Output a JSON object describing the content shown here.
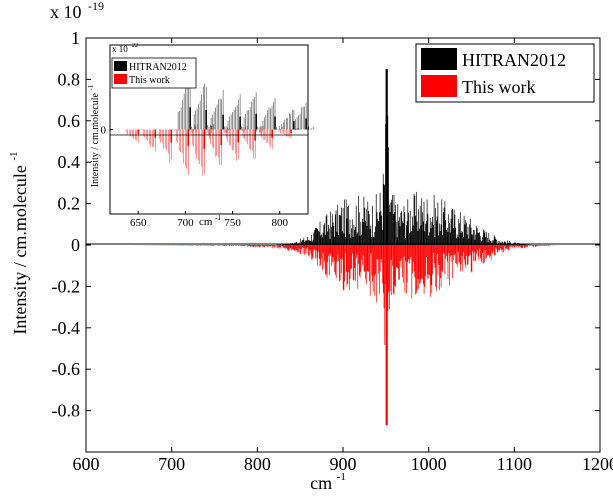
{
  "chart_data": [
    {
      "id": "main",
      "type": "line",
      "xlim": [
        600,
        1200
      ],
      "ylim": [
        -1,
        1
      ],
      "x_ticks": [
        600,
        700,
        800,
        900,
        1000,
        1100,
        1200
      ],
      "y_ticks": [
        -0.8,
        -0.6,
        -0.4,
        -0.2,
        0,
        0.2,
        0.4,
        0.6,
        0.8,
        1
      ],
      "y_tick_labels": [
        "-0.8",
        "-0.6",
        "-0.4",
        "-0.2",
        "0",
        "0.2",
        "0.4",
        "0.6",
        "0.8",
        "1"
      ],
      "x_tick_labels": [
        "600",
        "700",
        "800",
        "900",
        "1000",
        "1100",
        "1200"
      ],
      "y_multiplier": {
        "base": "x 10",
        "exponent": "-19"
      },
      "xlabel": {
        "text": "cm",
        "superscript": "-1"
      },
      "ylabel": {
        "text": "Intensity / cm.molecule",
        "superscript": "-1"
      },
      "legend": {
        "position": "top-right",
        "entries": [
          {
            "label": "HITRAN2012",
            "color": "#000000"
          },
          {
            "label": "This work",
            "color": "#ff0000"
          }
        ]
      },
      "series": [
        {
          "name": "HITRAN2012",
          "color": "#000000",
          "direction": "positive",
          "envelope": [
            {
              "x": 820,
              "y": 0.0
            },
            {
              "x": 840,
              "y": 0.01
            },
            {
              "x": 860,
              "y": 0.05
            },
            {
              "x": 880,
              "y": 0.15
            },
            {
              "x": 900,
              "y": 0.22
            },
            {
              "x": 920,
              "y": 0.25
            },
            {
              "x": 935,
              "y": 0.22
            },
            {
              "x": 945,
              "y": 0.3
            },
            {
              "x": 948,
              "y": 0.45
            },
            {
              "x": 951,
              "y": 0.85
            },
            {
              "x": 955,
              "y": 0.3
            },
            {
              "x": 965,
              "y": 0.2
            },
            {
              "x": 985,
              "y": 0.26
            },
            {
              "x": 1005,
              "y": 0.25
            },
            {
              "x": 1025,
              "y": 0.2
            },
            {
              "x": 1045,
              "y": 0.15
            },
            {
              "x": 1065,
              "y": 0.08
            },
            {
              "x": 1085,
              "y": 0.03
            },
            {
              "x": 1105,
              "y": 0.01
            },
            {
              "x": 1120,
              "y": 0.0
            }
          ]
        },
        {
          "name": "This work",
          "color": "#ff0000",
          "direction": "negative",
          "envelope": [
            {
              "x": 650,
              "y": 0.0
            },
            {
              "x": 780,
              "y": -0.005
            },
            {
              "x": 830,
              "y": -0.02
            },
            {
              "x": 860,
              "y": -0.06
            },
            {
              "x": 880,
              "y": -0.16
            },
            {
              "x": 900,
              "y": -0.22
            },
            {
              "x": 920,
              "y": -0.26
            },
            {
              "x": 935,
              "y": -0.25
            },
            {
              "x": 943,
              "y": -0.32
            },
            {
              "x": 948,
              "y": -0.4
            },
            {
              "x": 951,
              "y": -0.87
            },
            {
              "x": 955,
              "y": -0.35
            },
            {
              "x": 965,
              "y": -0.22
            },
            {
              "x": 985,
              "y": -0.27
            },
            {
              "x": 1005,
              "y": -0.25
            },
            {
              "x": 1025,
              "y": -0.2
            },
            {
              "x": 1045,
              "y": -0.16
            },
            {
              "x": 1065,
              "y": -0.09
            },
            {
              "x": 1090,
              "y": -0.03
            },
            {
              "x": 1120,
              "y": -0.01
            },
            {
              "x": 1150,
              "y": 0.0
            }
          ]
        }
      ]
    },
    {
      "id": "inset",
      "type": "line",
      "xlim": [
        620,
        830
      ],
      "ylim": [
        -1.6,
        1.6
      ],
      "x_ticks": [
        650,
        700,
        750,
        800
      ],
      "x_tick_labels": [
        "650",
        "700",
        "750",
        "800"
      ],
      "y_ticks": [
        0
      ],
      "y_tick_labels": [
        "0"
      ],
      "y_multiplier": {
        "base": "x 10",
        "exponent": "-22"
      },
      "xlabel": {
        "text": "cm",
        "superscript": "-1"
      },
      "ylabel": {
        "text": "Intensity / cm.molecule",
        "superscript": "-1"
      },
      "legend": {
        "position": "top-left",
        "entries": [
          {
            "label": "HITRAN2012",
            "color": "#000000"
          },
          {
            "label": "This work",
            "color": "#ff0000"
          }
        ]
      },
      "series": [
        {
          "name": "HITRAN2012",
          "color": "#000000",
          "direction": "positive",
          "band_peaks": [
            {
              "x": 705,
              "y": 1.2
            },
            {
              "x": 722,
              "y": 1.05
            },
            {
              "x": 740,
              "y": 0.8
            },
            {
              "x": 758,
              "y": 0.7
            },
            {
              "x": 775,
              "y": 0.85
            },
            {
              "x": 795,
              "y": 0.7
            },
            {
              "x": 815,
              "y": 0.45
            },
            {
              "x": 828,
              "y": 0.6
            }
          ]
        },
        {
          "name": "This work",
          "color": "#ff0000",
          "direction": "negative",
          "band_peaks": [
            {
              "x": 650,
              "y": -0.25
            },
            {
              "x": 668,
              "y": -0.45
            },
            {
              "x": 685,
              "y": -0.7
            },
            {
              "x": 703,
              "y": -0.9
            },
            {
              "x": 720,
              "y": -1.05
            },
            {
              "x": 738,
              "y": -0.85
            },
            {
              "x": 756,
              "y": -0.7
            },
            {
              "x": 774,
              "y": -0.6
            },
            {
              "x": 792,
              "y": -0.45
            },
            {
              "x": 812,
              "y": -0.2
            }
          ]
        }
      ]
    }
  ]
}
